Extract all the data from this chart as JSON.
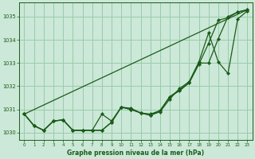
{
  "xlabel": "Graphe pression niveau de la mer (hPa)",
  "bg_color": "#cce8d8",
  "grid_color": "#99ccaa",
  "line_color": "#1a5c1a",
  "xlim": [
    -0.5,
    23.5
  ],
  "ylim": [
    1029.7,
    1035.6
  ],
  "yticks": [
    1030,
    1031,
    1032,
    1033,
    1034,
    1035
  ],
  "xticks": [
    0,
    1,
    2,
    3,
    4,
    5,
    6,
    7,
    8,
    9,
    10,
    11,
    12,
    13,
    14,
    15,
    16,
    17,
    18,
    19,
    20,
    21,
    22,
    23
  ],
  "straight_line_x": [
    0,
    23
  ],
  "straight_line_y": [
    1030.8,
    1035.3
  ],
  "line_a_y": [
    1030.8,
    1030.3,
    1030.1,
    1030.5,
    1030.55,
    1030.1,
    1030.1,
    1030.1,
    1030.1,
    1030.45,
    1031.1,
    1031.0,
    1030.85,
    1030.75,
    1030.95,
    1031.55,
    1031.85,
    1032.15,
    1032.95,
    1033.85,
    1034.85,
    1034.95,
    1035.2,
    1035.3
  ],
  "line_b_y": [
    1030.8,
    1030.3,
    1030.1,
    1030.5,
    1030.55,
    1030.1,
    1030.1,
    1030.1,
    1030.1,
    1030.45,
    1031.1,
    1031.0,
    1030.85,
    1030.75,
    1030.9,
    1031.45,
    1031.9,
    1032.2,
    1033.05,
    1034.3,
    1033.05,
    1032.55,
    1034.9,
    1035.25
  ],
  "line_c_y": [
    1030.8,
    1030.3,
    1030.1,
    1030.5,
    1030.55,
    1030.1,
    1030.1,
    1030.1,
    1030.8,
    1030.5,
    1031.1,
    1031.05,
    1030.85,
    1030.8,
    1030.95,
    1031.55,
    1031.8,
    1032.15,
    1033.0,
    1033.0,
    1034.05,
    1035.0,
    1035.2,
    1035.3
  ]
}
